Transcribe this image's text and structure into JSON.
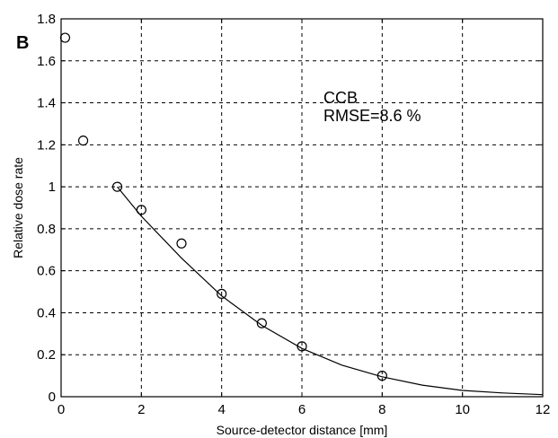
{
  "chart_data": {
    "type": "scatter",
    "panel_label": "B",
    "title": "",
    "xlabel": "Source-detector distance [mm]",
    "ylabel": "Relative dose rate",
    "xlim": [
      0,
      12
    ],
    "ylim": [
      0,
      1.8
    ],
    "xticks": [
      0,
      2,
      4,
      6,
      8,
      10,
      12
    ],
    "yticks": [
      0,
      0.2,
      0.4,
      0.6,
      0.8,
      1,
      1.2,
      1.4,
      1.6,
      1.8
    ],
    "xtick_labels": [
      "0",
      "2",
      "4",
      "6",
      "8",
      "10",
      "12"
    ],
    "ytick_labels": [
      "0",
      "0.2",
      "0.4",
      "0.6",
      "0.8",
      "1",
      "1.2",
      "1.4",
      "1.6",
      "1.8"
    ],
    "grid": true,
    "annotations": [
      "CCB",
      "RMSE=8.6 %"
    ],
    "series": [
      {
        "kind": "markers",
        "marker": "open-circle",
        "x": [
          0.1,
          0.55,
          1.4,
          2.0,
          3.0,
          4.0,
          5.0,
          6.0,
          8.0
        ],
        "y": [
          1.71,
          1.22,
          1.0,
          0.89,
          0.73,
          0.49,
          0.35,
          0.24,
          0.1
        ]
      },
      {
        "kind": "line",
        "x": [
          1.4,
          2.0,
          3.0,
          4.0,
          5.0,
          6.0,
          7.0,
          8.0,
          9.0,
          10.0,
          11.0,
          12.0
        ],
        "y": [
          1.0,
          0.86,
          0.66,
          0.48,
          0.34,
          0.23,
          0.15,
          0.095,
          0.055,
          0.03,
          0.018,
          0.01
        ]
      }
    ],
    "colors": {
      "axis": "#000000",
      "grid": "#000000",
      "marker": "#000000",
      "line": "#000000"
    }
  }
}
